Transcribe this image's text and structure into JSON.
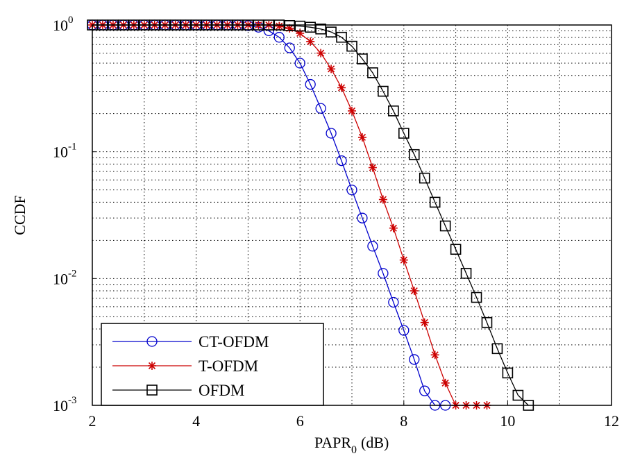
{
  "chart_data": {
    "type": "line",
    "title": "",
    "xlabel": "PAPR",
    "xlabel_sub": "0",
    "xlabel_unit": "(dB)",
    "ylabel": "CCDF",
    "xlim": [
      2,
      12
    ],
    "ylim": [
      0.001,
      1
    ],
    "yscale": "log",
    "grid": true,
    "grid_style": "dotted",
    "x_ticks": [
      "2",
      "4",
      "6",
      "8",
      "10",
      "12"
    ],
    "y_ticks": [
      {
        "base": "10",
        "exp": "-3"
      },
      {
        "base": "10",
        "exp": "-2"
      },
      {
        "base": "10",
        "exp": "-1"
      },
      {
        "base": "10",
        "exp": "0"
      }
    ],
    "legend_placement": "bottom-left",
    "series": [
      {
        "name": "CT-OFDM",
        "color": "#0000cc",
        "marker": "circle",
        "x": [
          2.0,
          2.2,
          2.4,
          2.6,
          2.8,
          3.0,
          3.2,
          3.4,
          3.6,
          3.8,
          4.0,
          4.2,
          4.4,
          4.6,
          4.8,
          5.0,
          5.2,
          5.4,
          5.6,
          5.8,
          6.0,
          6.2,
          6.4,
          6.6,
          6.8,
          7.0,
          7.2,
          7.4,
          7.6,
          7.8,
          8.0,
          8.2,
          8.4,
          8.6,
          8.8
        ],
        "y": [
          1,
          1,
          1,
          1,
          1,
          1,
          1,
          1,
          1,
          1,
          1,
          1,
          1,
          1,
          1,
          0.99,
          0.96,
          0.9,
          0.8,
          0.66,
          0.5,
          0.34,
          0.22,
          0.14,
          0.085,
          0.05,
          0.03,
          0.018,
          0.011,
          0.0065,
          0.0039,
          0.0023,
          0.0013,
          0.001,
          0.001
        ]
      },
      {
        "name": "T-OFDM",
        "color": "#cc0000",
        "marker": "star",
        "x": [
          2.0,
          2.2,
          2.4,
          2.6,
          2.8,
          3.0,
          3.2,
          3.4,
          3.6,
          3.8,
          4.0,
          4.2,
          4.4,
          4.6,
          4.8,
          5.0,
          5.2,
          5.4,
          5.6,
          5.8,
          6.0,
          6.2,
          6.4,
          6.6,
          6.8,
          7.0,
          7.2,
          7.4,
          7.6,
          7.8,
          8.0,
          8.2,
          8.4,
          8.6,
          8.8,
          9.0,
          9.2,
          9.4,
          9.6
        ],
        "y": [
          1,
          1,
          1,
          1,
          1,
          1,
          1,
          1,
          1,
          1,
          1,
          1,
          1,
          1,
          1,
          1,
          1,
          1,
          0.98,
          0.94,
          0.86,
          0.74,
          0.6,
          0.45,
          0.32,
          0.21,
          0.13,
          0.075,
          0.042,
          0.025,
          0.014,
          0.008,
          0.0045,
          0.0025,
          0.0015,
          0.001,
          0.001,
          0.001,
          0.001
        ]
      },
      {
        "name": "OFDM",
        "color": "#000000",
        "marker": "square",
        "x": [
          2.0,
          2.2,
          2.4,
          2.6,
          2.8,
          3.0,
          3.2,
          3.4,
          3.6,
          3.8,
          4.0,
          4.2,
          4.4,
          4.6,
          4.8,
          5.0,
          5.2,
          5.4,
          5.6,
          5.8,
          6.0,
          6.2,
          6.4,
          6.6,
          6.8,
          7.0,
          7.2,
          7.4,
          7.6,
          7.8,
          8.0,
          8.2,
          8.4,
          8.6,
          8.8,
          9.0,
          9.2,
          9.4,
          9.6,
          9.8,
          10.0,
          10.2,
          10.4
        ],
        "y": [
          1,
          1,
          1,
          1,
          1,
          1,
          1,
          1,
          1,
          1,
          1,
          1,
          1,
          1,
          1,
          1,
          1,
          1,
          1,
          0.99,
          0.98,
          0.96,
          0.93,
          0.88,
          0.8,
          0.68,
          0.54,
          0.42,
          0.3,
          0.21,
          0.14,
          0.095,
          0.062,
          0.04,
          0.026,
          0.017,
          0.011,
          0.0071,
          0.0045,
          0.0028,
          0.0018,
          0.0012,
          0.001
        ]
      }
    ]
  }
}
